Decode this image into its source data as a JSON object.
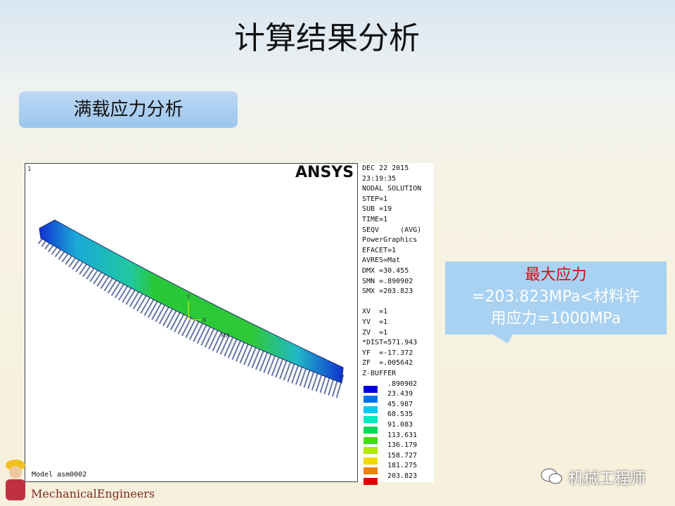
{
  "header": {
    "title": "计算结果分析"
  },
  "section": {
    "label": "满载应力分析"
  },
  "result_image": {
    "logo": "ANSYS",
    "window_number": "1",
    "info": [
      "DEC 22 2015",
      "23:19:35",
      "NODAL SOLUTION",
      "STEP=1",
      "SUB =19",
      "TIME=1",
      "SEQV     (AVG)",
      "PowerGraphics",
      "EFACET=1",
      "AVRES=Mat",
      "DMX =30.455",
      "SMN =.890902",
      "SMX =203.823"
    ],
    "view": [
      "XV  =1",
      "YV  =1",
      "ZV  =1",
      "*DIST=571.943",
      "YF  =-17.372",
      "ZF  =.005642",
      "Z-BUFFER"
    ],
    "triad": {
      "y": "Y",
      "x": "X",
      "mx": "MX"
    },
    "model": "Model asm0002",
    "legend": {
      "labels": [
        ".890902",
        "23.439",
        "45.987",
        "68.535",
        "91.083",
        "113.631",
        "136.179",
        "158.727",
        "181.275",
        "203.823"
      ],
      "colors": [
        "#0000d8",
        "#0070e8",
        "#00c8f0",
        "#00e8c0",
        "#00d858",
        "#40e000",
        "#b0e800",
        "#f0d800",
        "#f08000",
        "#e00000"
      ]
    }
  },
  "callout": {
    "lines": [
      "最大应力",
      "=203.823MPa<材料许",
      "用应力=1000MPa"
    ]
  },
  "footer": {
    "brand": "MechanicalEngineers",
    "watermark": "机械工程师"
  }
}
